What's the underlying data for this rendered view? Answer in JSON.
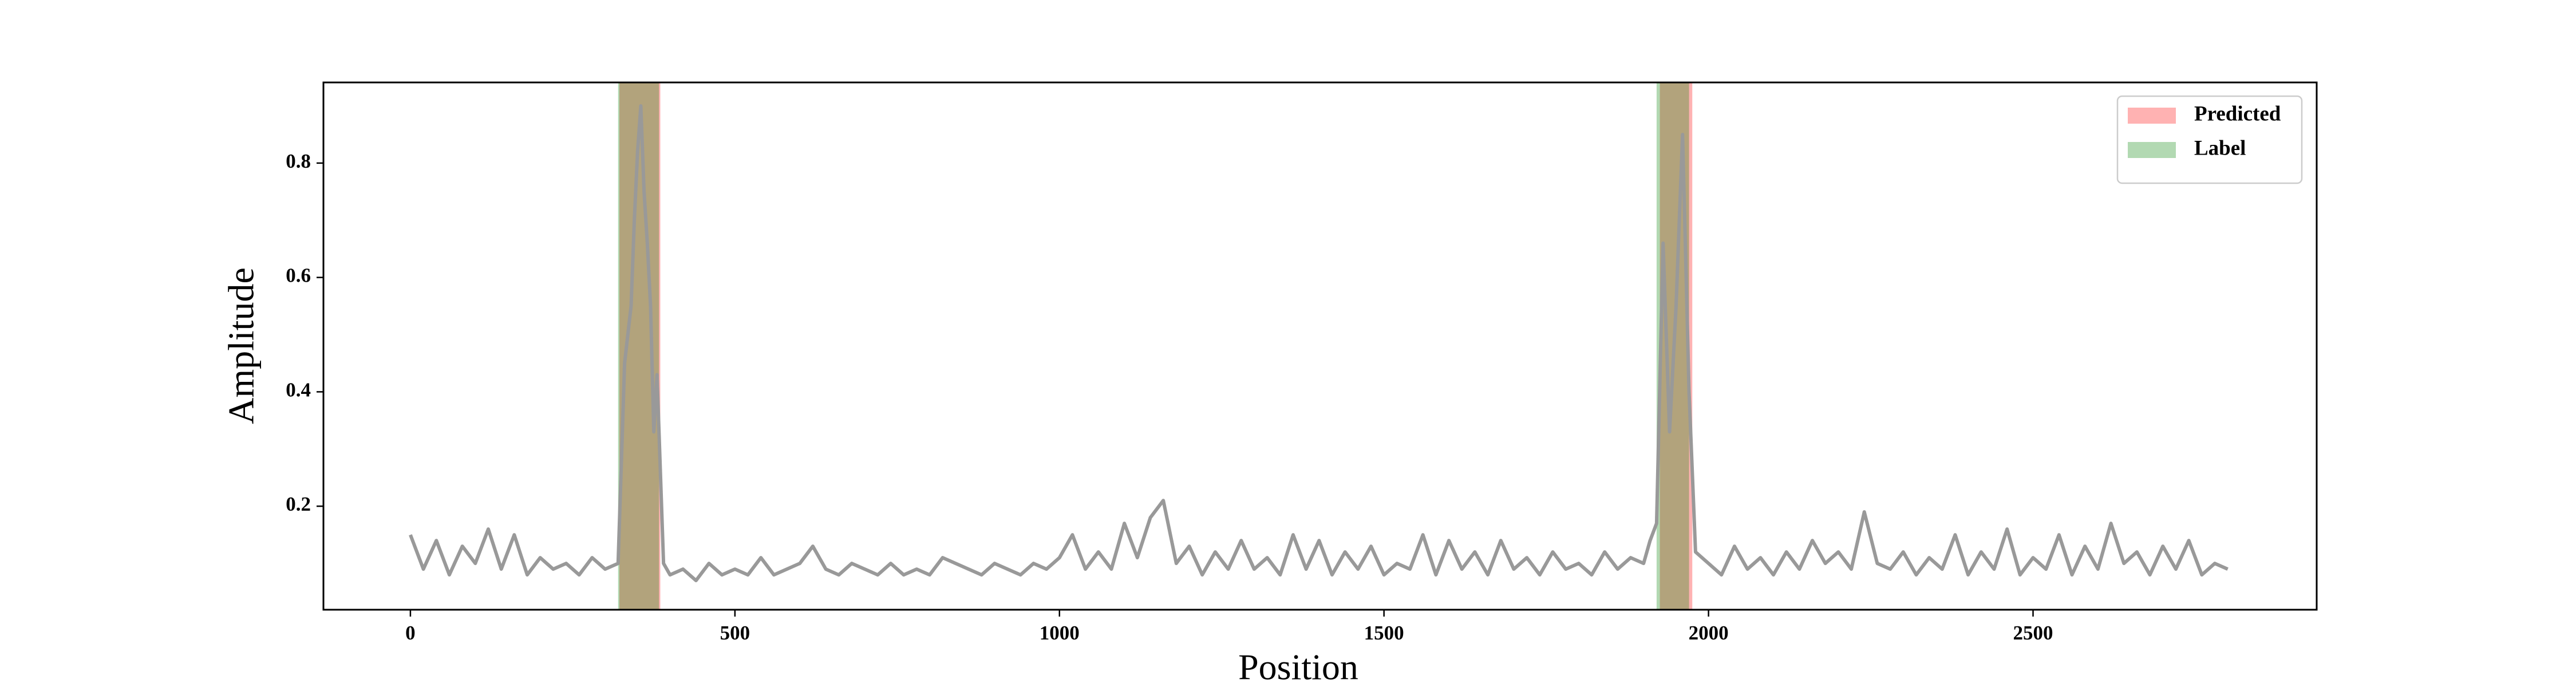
{
  "chart_data": {
    "type": "line",
    "xlabel": "Position",
    "ylabel": "Amplitude",
    "xlim": [
      -134,
      2937
    ],
    "ylim": [
      0.019,
      0.941
    ],
    "xticks": [
      0,
      500,
      1000,
      1500,
      2000,
      2500
    ],
    "yticks": [
      0.2,
      0.4,
      0.6,
      0.8
    ],
    "legend": "upper right",
    "color": "#999999",
    "x": [
      0,
      20,
      40,
      60,
      80,
      100,
      120,
      140,
      160,
      180,
      200,
      220,
      240,
      260,
      280,
      300,
      320,
      330,
      340,
      345,
      350,
      355,
      360,
      365,
      370,
      375,
      380,
      390,
      400,
      420,
      440,
      460,
      480,
      500,
      520,
      540,
      560,
      580,
      600,
      620,
      640,
      660,
      680,
      700,
      720,
      740,
      760,
      780,
      800,
      820,
      840,
      860,
      880,
      900,
      920,
      940,
      960,
      980,
      1000,
      1020,
      1040,
      1060,
      1080,
      1100,
      1120,
      1140,
      1160,
      1180,
      1200,
      1220,
      1240,
      1260,
      1280,
      1300,
      1320,
      1340,
      1360,
      1380,
      1400,
      1420,
      1440,
      1460,
      1480,
      1500,
      1520,
      1540,
      1560,
      1580,
      1600,
      1620,
      1640,
      1660,
      1680,
      1700,
      1720,
      1740,
      1760,
      1780,
      1800,
      1820,
      1840,
      1860,
      1880,
      1900,
      1910,
      1920,
      1930,
      1940,
      1950,
      1960,
      1970,
      1980,
      2000,
      2020,
      2040,
      2060,
      2080,
      2100,
      2120,
      2140,
      2160,
      2180,
      2200,
      2220,
      2240,
      2260,
      2280,
      2300,
      2320,
      2340,
      2360,
      2380,
      2400,
      2420,
      2440,
      2460,
      2480,
      2500,
      2520,
      2540,
      2560,
      2580,
      2600,
      2620,
      2640,
      2660,
      2680,
      2700,
      2720,
      2740,
      2760,
      2780,
      2800
    ],
    "values": [
      0.15,
      0.09,
      0.14,
      0.08,
      0.13,
      0.1,
      0.16,
      0.09,
      0.15,
      0.08,
      0.11,
      0.09,
      0.1,
      0.08,
      0.11,
      0.09,
      0.1,
      0.45,
      0.55,
      0.7,
      0.82,
      0.9,
      0.75,
      0.66,
      0.55,
      0.33,
      0.43,
      0.1,
      0.08,
      0.09,
      0.07,
      0.1,
      0.08,
      0.09,
      0.08,
      0.11,
      0.08,
      0.09,
      0.1,
      0.13,
      0.09,
      0.08,
      0.1,
      0.09,
      0.08,
      0.1,
      0.08,
      0.09,
      0.08,
      0.11,
      0.1,
      0.09,
      0.08,
      0.1,
      0.09,
      0.08,
      0.1,
      0.09,
      0.11,
      0.15,
      0.09,
      0.12,
      0.09,
      0.17,
      0.11,
      0.18,
      0.21,
      0.1,
      0.13,
      0.08,
      0.12,
      0.09,
      0.14,
      0.09,
      0.11,
      0.08,
      0.15,
      0.09,
      0.14,
      0.08,
      0.12,
      0.09,
      0.13,
      0.08,
      0.1,
      0.09,
      0.15,
      0.08,
      0.14,
      0.09,
      0.12,
      0.08,
      0.14,
      0.09,
      0.11,
      0.08,
      0.12,
      0.09,
      0.1,
      0.08,
      0.12,
      0.09,
      0.11,
      0.1,
      0.14,
      0.17,
      0.66,
      0.33,
      0.55,
      0.85,
      0.4,
      0.12,
      0.1,
      0.08,
      0.13,
      0.09,
      0.11,
      0.08,
      0.12,
      0.09,
      0.14,
      0.1,
      0.12,
      0.09,
      0.19,
      0.1,
      0.09,
      0.12,
      0.08,
      0.11,
      0.09,
      0.15,
      0.08,
      0.12,
      0.09,
      0.16,
      0.08,
      0.11,
      0.09,
      0.15,
      0.08,
      0.13,
      0.09,
      0.17,
      0.1,
      0.12,
      0.08,
      0.13,
      0.09,
      0.14,
      0.08,
      0.1,
      0.09
    ],
    "spans": [
      {
        "name": "Predicted",
        "color": "#ff0000",
        "alpha": 0.3,
        "ranges": [
          [
            322,
            385
          ],
          [
            1925,
            1975
          ]
        ]
      },
      {
        "name": "Label",
        "color": "#008000",
        "alpha": 0.3,
        "ranges": [
          [
            320,
            383
          ],
          [
            1920,
            1970
          ]
        ]
      }
    ]
  }
}
